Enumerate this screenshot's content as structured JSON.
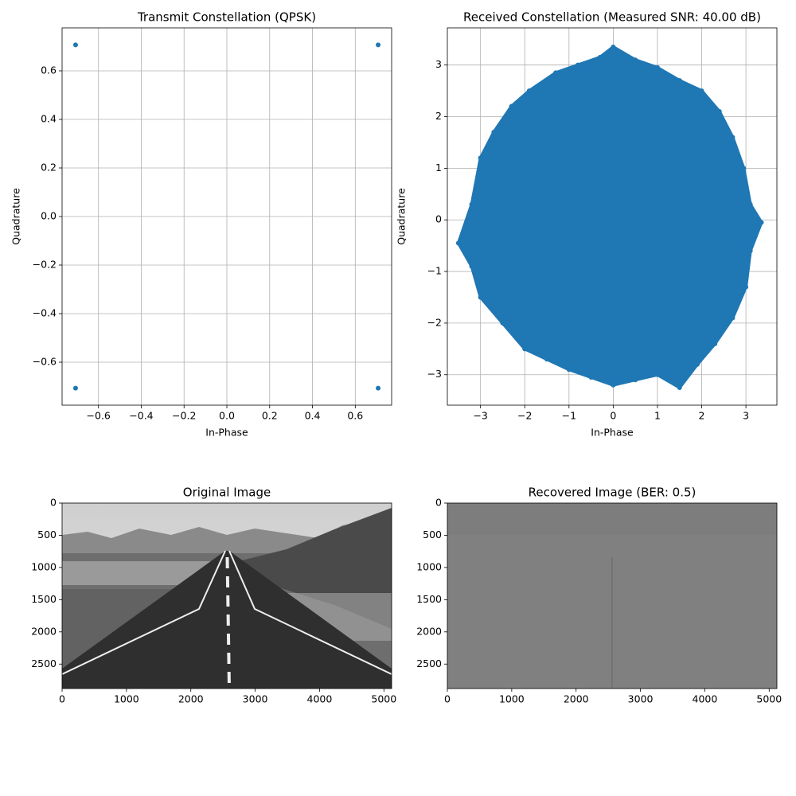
{
  "chart_data": [
    {
      "type": "scatter",
      "title": "Transmit Constellation (QPSK)",
      "x_label": "In-Phase",
      "y_label": "Quadrature",
      "color": "#1f77b4",
      "grid": true,
      "x": [
        -0.707,
        -0.707,
        0.707,
        0.707
      ],
      "values": [
        0.707,
        -0.707,
        0.707,
        -0.707
      ],
      "xlim": [
        -0.77,
        0.77
      ],
      "ylim": [
        -0.777,
        0.777
      ],
      "xticks": [
        {
          "value": -0.6,
          "label": "−0.6"
        },
        {
          "value": -0.4,
          "label": "−0.4"
        },
        {
          "value": -0.2,
          "label": "−0.2"
        },
        {
          "value": 0,
          "label": "0.0"
        },
        0.2,
        0.4,
        0.6
      ],
      "yticks": [
        {
          "value": -0.6,
          "label": "−0.6"
        },
        {
          "value": -0.4,
          "label": "−0.4"
        },
        {
          "value": -0.2,
          "label": "−0.2"
        },
        {
          "value": 0,
          "label": "0.0"
        },
        0.2,
        0.4,
        0.6
      ]
    },
    {
      "type": "scatter_cloud",
      "title": "Received Constellation (Measured SNR: 40.00 dB)",
      "x_label": "In-Phase",
      "y_label": "Quadrature",
      "color": "#1f77b4",
      "grid": true,
      "x": [
        0,
        0.5,
        1,
        1.5,
        2,
        2.4,
        2.7,
        2.95,
        3.1,
        3.35,
        3.1,
        3.0,
        2.7,
        2.3,
        1.9,
        1.5,
        1,
        0.5,
        0,
        -0.5,
        -1,
        -1.5,
        -2,
        -2.5,
        -3.0,
        -3.2,
        -3.5,
        -3.2,
        -3.0,
        -2.7,
        -2.3,
        -1.9,
        -1.3,
        -0.8,
        -0.3
      ],
      "values": [
        3.35,
        3.1,
        2.95,
        2.7,
        2.5,
        2.1,
        1.6,
        1.0,
        0.3,
        -0.05,
        -0.6,
        -1.3,
        -1.9,
        -2.4,
        -2.8,
        -3.25,
        -3.0,
        -3.1,
        -3.2,
        -3.05,
        -2.9,
        -2.7,
        -2.5,
        -2.0,
        -1.5,
        -0.9,
        -0.45,
        0.3,
        1.2,
        1.7,
        2.2,
        2.5,
        2.85,
        3.0,
        3.15
      ],
      "xlim": [
        -3.75,
        3.7
      ],
      "ylim": [
        -3.59,
        3.72
      ],
      "xticks": [
        {
          "value": -3,
          "label": "−3"
        },
        {
          "value": -2,
          "label": "−2"
        },
        {
          "value": -1,
          "label": "−1"
        },
        0,
        1,
        2,
        3
      ],
      "yticks": [
        {
          "value": -3,
          "label": "−3"
        },
        {
          "value": -2,
          "label": "−2"
        },
        {
          "value": -1,
          "label": "−1"
        },
        0,
        1,
        2,
        3
      ]
    },
    {
      "type": "image",
      "title": "Original Image",
      "grid": false,
      "xlim": [
        0,
        5120
      ],
      "ylim": [
        2880,
        0
      ],
      "xticks": [
        0,
        1000,
        2000,
        3000,
        4000,
        5000
      ],
      "yticks": [
        0,
        500,
        1000,
        1500,
        2000,
        2500
      ]
    },
    {
      "type": "image",
      "title": "Recovered Image (BER: 0.5)",
      "grid": false,
      "xlim": [
        0,
        5120
      ],
      "ylim": [
        2880,
        0
      ],
      "xticks": [
        0,
        1000,
        2000,
        3000,
        4000,
        5000
      ],
      "yticks": [
        0,
        500,
        1000,
        1500,
        2000,
        2500
      ]
    }
  ]
}
